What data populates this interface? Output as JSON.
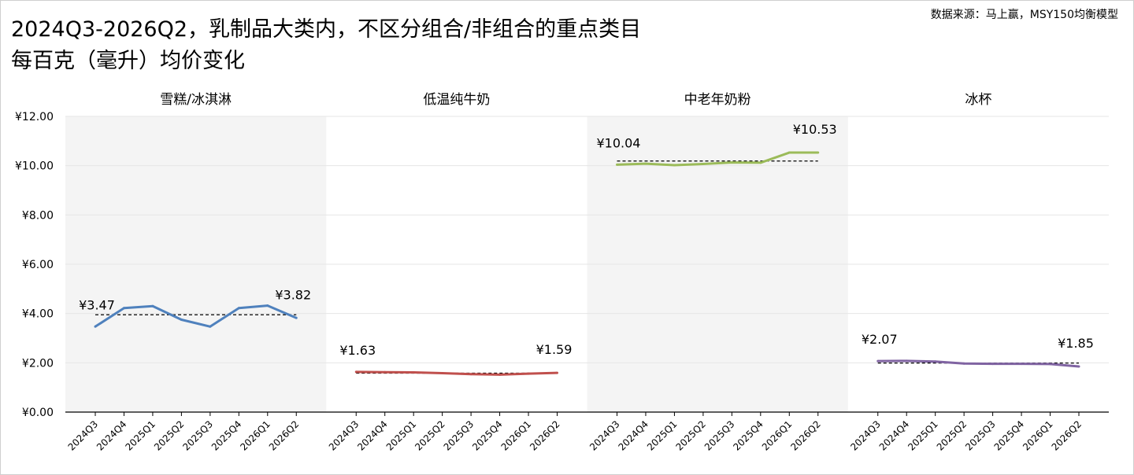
{
  "title": {
    "line1": "2024Q3-2026Q2，乳制品大类内，不区分组合/非组合的重点类目",
    "line2": "每百克（毫升）均价变化"
  },
  "source": "数据来源：马上赢，MSY150均衡模型",
  "colors": {
    "panel_shade": "#f4f4f4",
    "grid": "#e6e6e6",
    "axis": "#000000",
    "mean_line": "#000000"
  },
  "chart_data": {
    "type": "line",
    "y_tick_labels": [
      "¥0.00",
      "¥2.00",
      "¥4.00",
      "¥6.00",
      "¥8.00",
      "¥10.00",
      "¥12.00"
    ],
    "ylim": [
      0,
      12
    ],
    "grid": true,
    "categories": [
      "2024Q3",
      "2024Q4",
      "2025Q1",
      "2025Q2",
      "2025Q3",
      "2025Q4",
      "2026Q1",
      "2026Q2"
    ],
    "panels": [
      {
        "name": "雪糕/冰淇淋",
        "color": "#4f81bd",
        "shaded": true,
        "values": [
          3.47,
          4.22,
          4.3,
          3.75,
          3.47,
          4.22,
          4.32,
          3.82
        ],
        "mean": 3.95,
        "first_label": "¥3.47",
        "last_label": "¥3.82"
      },
      {
        "name": "低温纯牛奶",
        "color": "#c0504d",
        "shaded": false,
        "values": [
          1.63,
          1.62,
          1.61,
          1.58,
          1.54,
          1.52,
          1.56,
          1.59
        ],
        "mean": 1.58,
        "first_label": "¥1.63",
        "last_label": "¥1.59"
      },
      {
        "name": "中老年奶粉",
        "color": "#9bbb59",
        "shaded": true,
        "values": [
          10.04,
          10.08,
          10.02,
          10.07,
          10.13,
          10.12,
          10.53,
          10.53
        ],
        "mean": 10.19,
        "first_label": "¥10.04",
        "last_label": "¥10.53"
      },
      {
        "name": "冰杯",
        "color": "#8064a2",
        "shaded": false,
        "values": [
          2.07,
          2.08,
          2.05,
          1.97,
          1.96,
          1.96,
          1.95,
          1.85
        ],
        "mean": 1.99,
        "first_label": "¥2.07",
        "last_label": "¥1.85"
      }
    ]
  }
}
